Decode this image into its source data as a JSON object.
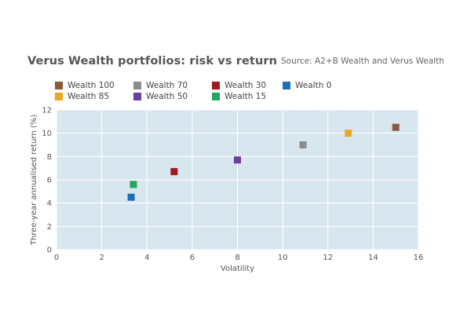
{
  "chart_data": {
    "type": "scatter",
    "title": "Verus Wealth portfolios: risk vs return",
    "source": "Source: A2+B Wealth and Verus Wealth",
    "xlabel": "Volatility",
    "ylabel": "Three-year annualised return (%)",
    "xlim": [
      0,
      16
    ],
    "ylim": [
      0,
      12
    ],
    "xticks": [
      0,
      2,
      4,
      6,
      8,
      10,
      12,
      14,
      16
    ],
    "yticks": [
      0,
      2,
      4,
      6,
      8,
      10,
      12
    ],
    "grid": true,
    "legend_position": "top",
    "series": [
      {
        "name": "Wealth 100",
        "color": "#8B5A3C",
        "x": 15.0,
        "y": 10.5
      },
      {
        "name": "Wealth 85",
        "color": "#E8A820",
        "x": 12.9,
        "y": 10.0
      },
      {
        "name": "Wealth 70",
        "color": "#8C8C8C",
        "x": 10.9,
        "y": 9.0
      },
      {
        "name": "Wealth 50",
        "color": "#6B3FA0",
        "x": 8.0,
        "y": 7.7
      },
      {
        "name": "Wealth 30",
        "color": "#A01820",
        "x": 5.2,
        "y": 6.7
      },
      {
        "name": "Wealth 15",
        "color": "#20A860",
        "x": 3.4,
        "y": 5.6
      },
      {
        "name": "Wealth 0",
        "color": "#1E6FB8",
        "x": 3.3,
        "y": 4.5
      }
    ],
    "legend_order": [
      "Wealth 100",
      "Wealth 70",
      "Wealth 30",
      "Wealth 0",
      "Wealth 85",
      "Wealth 50",
      "Wealth 15"
    ]
  }
}
